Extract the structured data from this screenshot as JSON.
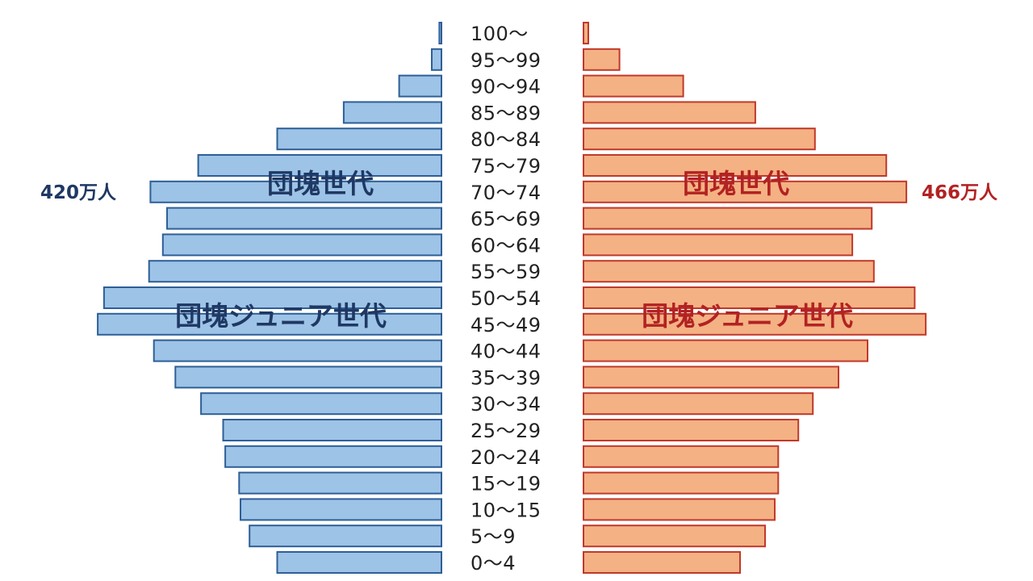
{
  "chart_data": {
    "type": "bar",
    "subtype": "population-pyramid",
    "categories": [
      "0〜4",
      "5〜9",
      "10〜15",
      "15〜19",
      "20〜24",
      "25〜29",
      "30〜34",
      "35〜39",
      "40〜44",
      "45〜49",
      "50〜54",
      "55〜59",
      "60〜64",
      "65〜69",
      "70〜74",
      "75〜79",
      "80〜84",
      "85〜89",
      "90〜94",
      "95〜99",
      "100〜"
    ],
    "series": [
      {
        "side": "left",
        "color": "#9dc3e6",
        "stroke": "#2e5f97",
        "values": [
          237,
          277,
          290,
          292,
          312,
          315,
          347,
          384,
          415,
          496,
          487,
          422,
          402,
          396,
          420,
          351,
          237,
          141,
          61,
          14,
          3
        ]
      },
      {
        "side": "right",
        "color": "#f4b183",
        "stroke": "#c0392b",
        "values": [
          226,
          262,
          276,
          281,
          281,
          310,
          331,
          368,
          410,
          494,
          478,
          419,
          388,
          416,
          466,
          437,
          334,
          248,
          144,
          52,
          7
        ]
      }
    ],
    "annotations": {
      "left_peak": "420万人",
      "right_peak": "466万人",
      "left_gen1": "団塊世代",
      "right_gen1": "団塊世代",
      "left_gen2": "団塊ジュニア世代",
      "right_gen2": "団塊ジュニア世代"
    },
    "annotation_colors": {
      "left": "#1f3864",
      "right": "#b22222"
    }
  }
}
